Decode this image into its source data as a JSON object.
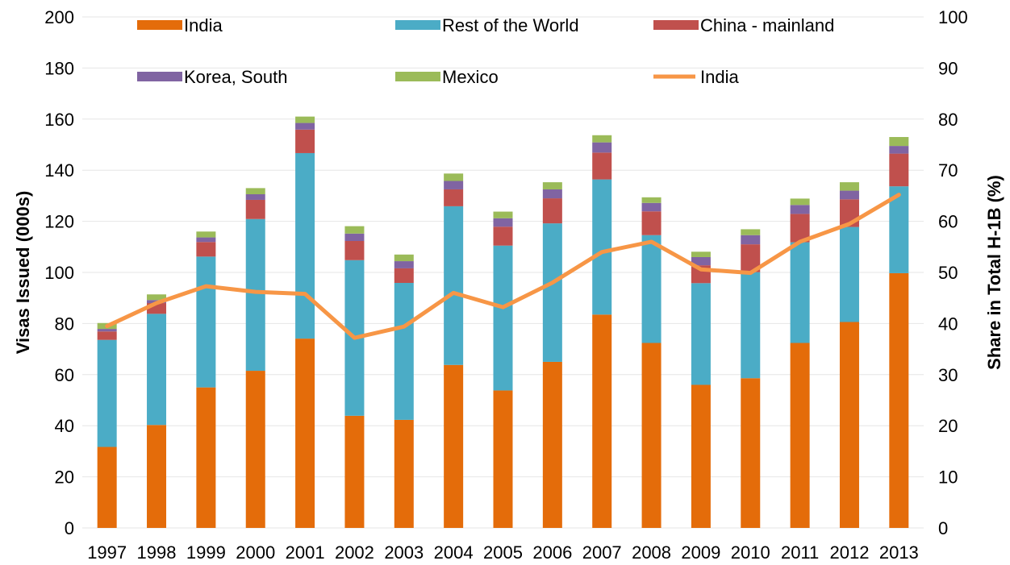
{
  "chart_data": {
    "type": "bar",
    "stacked": true,
    "categories": [
      "1997",
      "1998",
      "1999",
      "2000",
      "2001",
      "2002",
      "2003",
      "2004",
      "2005",
      "2006",
      "2007",
      "2008",
      "2009",
      "2010",
      "2011",
      "2012",
      "2013"
    ],
    "series": [
      {
        "name": "India",
        "color": "#e46c0a",
        "axis": "left",
        "values": [
          31.7,
          40.3,
          55.0,
          61.5,
          74.1,
          43.9,
          42.3,
          63.8,
          53.8,
          65.0,
          83.5,
          72.4,
          56.0,
          58.6,
          72.4,
          80.6,
          99.7
        ]
      },
      {
        "name": "Rest of the World",
        "color": "#4bacc6",
        "axis": "left",
        "values": [
          41.9,
          43.5,
          51.2,
          59.4,
          72.6,
          60.9,
          53.6,
          62.1,
          56.7,
          54.2,
          52.9,
          42.2,
          39.8,
          41.5,
          39.4,
          37.2,
          34.0
        ]
      },
      {
        "name": "China - mainland",
        "color": "#c0504d",
        "axis": "left",
        "values": [
          3.3,
          4.2,
          5.7,
          7.5,
          9.2,
          7.5,
          5.7,
          6.6,
          7.4,
          9.8,
          10.5,
          9.3,
          7.0,
          10.9,
          11.1,
          10.8,
          12.8
        ]
      },
      {
        "name": "Korea, South",
        "color": "#8064a2",
        "axis": "left",
        "values": [
          1.0,
          1.2,
          1.8,
          2.2,
          2.6,
          2.9,
          2.8,
          3.3,
          3.3,
          3.5,
          4.0,
          3.3,
          3.2,
          3.6,
          3.5,
          3.4,
          3.0
        ]
      },
      {
        "name": "Mexico",
        "color": "#9bbb59",
        "axis": "left",
        "values": [
          2.3,
          2.2,
          2.3,
          2.4,
          2.5,
          2.9,
          2.6,
          2.9,
          2.6,
          2.8,
          2.8,
          2.2,
          2.1,
          2.3,
          2.5,
          3.3,
          3.5
        ]
      },
      {
        "name": "India",
        "type": "line",
        "color": "#f79646",
        "axis": "right",
        "values": [
          39.5,
          44.0,
          47.3,
          46.2,
          45.8,
          37.2,
          39.4,
          46.0,
          43.2,
          48.0,
          54.0,
          56.0,
          50.6,
          49.9,
          56.0,
          59.5,
          65.2
        ]
      }
    ],
    "ylabel": "Visas Issued (000s)",
    "y2label": "Share in Total  H-1B (%)",
    "ylim": [
      0,
      200
    ],
    "y2lim": [
      0,
      100
    ],
    "yticks": [
      0,
      20,
      40,
      60,
      80,
      100,
      120,
      140,
      160,
      180,
      200
    ],
    "y2ticks": [
      0,
      10,
      20,
      30,
      40,
      50,
      60,
      70,
      80,
      90,
      100
    ],
    "grid": true,
    "legend_position": "top"
  }
}
